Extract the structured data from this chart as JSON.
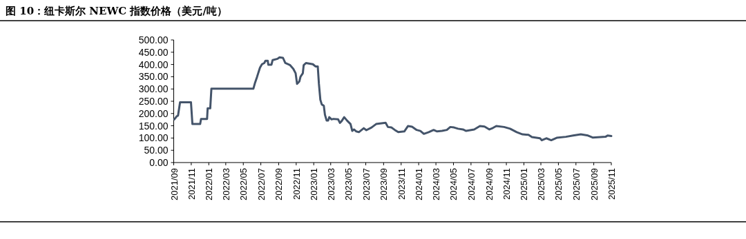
{
  "chart_data": {
    "type": "line",
    "title": "图 10：纽卡斯尔 NEWC 指数价格（美元/吨）",
    "color": "#44546a",
    "x": [
      "2021-09-03",
      "2021-09-11",
      "2021-09-16",
      "2021-09-23",
      "2021-10-31",
      "2021-11-05",
      "2021-12-02",
      "2021-12-05",
      "2021-12-26",
      "2021-12-28",
      "2022-01-06",
      "2022-01-10",
      "2022-06-05",
      "2022-06-11",
      "2022-06-18",
      "2022-06-28",
      "2022-07-05",
      "2022-07-13",
      "2022-07-17",
      "2022-07-25",
      "2022-07-27",
      "2022-08-07",
      "2022-08-11",
      "2022-08-28",
      "2022-09-04",
      "2022-09-16",
      "2022-09-24",
      "2022-10-10",
      "2022-10-22",
      "2022-10-30",
      "2022-11-04",
      "2022-11-12",
      "2022-11-16",
      "2022-11-24",
      "2022-11-27",
      "2022-12-05",
      "2022-12-29",
      "2023-01-07",
      "2023-01-15",
      "2023-01-19",
      "2023-01-24",
      "2023-01-29",
      "2023-02-05",
      "2023-02-09",
      "2023-02-15",
      "2023-02-20",
      "2023-02-24",
      "2023-03-04",
      "2023-03-10",
      "2023-03-27",
      "2023-04-02",
      "2023-04-08",
      "2023-04-17",
      "2023-04-27",
      "2023-05-09",
      "2023-05-15",
      "2023-05-21",
      "2023-05-29",
      "2023-06-07",
      "2023-06-24",
      "2023-07-03",
      "2023-07-21",
      "2023-08-06",
      "2023-09-08",
      "2023-09-16",
      "2023-09-28",
      "2023-10-10",
      "2023-10-22",
      "2023-11-12",
      "2023-11-25",
      "2023-12-09",
      "2023-12-25",
      "2024-01-07",
      "2024-01-19",
      "2024-02-05",
      "2024-02-22",
      "2024-03-05",
      "2024-03-22",
      "2024-04-08",
      "2024-04-20",
      "2024-05-03",
      "2024-05-17",
      "2024-06-03",
      "2024-06-14",
      "2024-07-12",
      "2024-08-01",
      "2024-08-17",
      "2024-09-03",
      "2024-09-15",
      "2024-09-27",
      "2024-10-24",
      "2024-11-14",
      "2024-12-07",
      "2024-12-27",
      "2025-01-17",
      "2025-01-29",
      "2025-02-26",
      "2025-03-04",
      "2025-03-20",
      "2025-04-06",
      "2025-04-25",
      "2025-05-27",
      "2025-06-21",
      "2025-07-18",
      "2025-08-12",
      "2025-08-28",
      "2025-10-12",
      "2025-10-19",
      "2025-11-01"
    ],
    "values": [
      176,
      188,
      192,
      246,
      246,
      157,
      157,
      178,
      178,
      221,
      221,
      301,
      301,
      326,
      350,
      387,
      401,
      406,
      415,
      415,
      399,
      399,
      418,
      423,
      429,
      427,
      406,
      398,
      382,
      364,
      321,
      331,
      350,
      364,
      397,
      406,
      401,
      392,
      392,
      321,
      256,
      237,
      232,
      195,
      171,
      171,
      185,
      176,
      178,
      176,
      162,
      169,
      185,
      171,
      157,
      129,
      135,
      127,
      124,
      140,
      132,
      143,
      157,
      162,
      145,
      143,
      133,
      124,
      127,
      149,
      146,
      133,
      129,
      117,
      124,
      133,
      127,
      129,
      133,
      145,
      143,
      138,
      135,
      129,
      135,
      149,
      147,
      135,
      141,
      149,
      145,
      138,
      124,
      115,
      113,
      104,
      99,
      91,
      99,
      91,
      101,
      105,
      110,
      115,
      110,
      102,
      105,
      110,
      108
    ],
    "xlim": [
      "2021-09",
      "2025-11"
    ],
    "xticks": [
      {
        "value": "2021-09",
        "label": "2021/09"
      },
      {
        "value": "2021-11",
        "label": "2021/11"
      },
      {
        "value": "2022-01",
        "label": "2022/01"
      },
      {
        "value": "2022-03",
        "label": "2022/03"
      },
      {
        "value": "2022-05",
        "label": "2022/05"
      },
      {
        "value": "2022-07",
        "label": "2022/07"
      },
      {
        "value": "2022-09",
        "label": "2022/09"
      },
      {
        "value": "2022-11",
        "label": "2022/11"
      },
      {
        "value": "2023-01",
        "label": "2023/01"
      },
      {
        "value": "2023-03",
        "label": "2023/03"
      },
      {
        "value": "2023-05",
        "label": "2023/05"
      },
      {
        "value": "2023-07",
        "label": "2023/07"
      },
      {
        "value": "2023-09",
        "label": "2023/09"
      },
      {
        "value": "2023-11",
        "label": "2023/11"
      },
      {
        "value": "2024-01",
        "label": "2024/01"
      },
      {
        "value": "2024-03",
        "label": "2024/03"
      },
      {
        "value": "2024-05",
        "label": "2024/05"
      },
      {
        "value": "2024-07",
        "label": "2024/07"
      },
      {
        "value": "2024-09",
        "label": "2024/09"
      },
      {
        "value": "2024-11",
        "label": "2024/11"
      },
      {
        "value": "2025-01",
        "label": "2025/01"
      },
      {
        "value": "2025-03",
        "label": "2025/03"
      },
      {
        "value": "2025-05",
        "label": "2025/05"
      },
      {
        "value": "2025-07",
        "label": "2025/07"
      },
      {
        "value": "2025-09",
        "label": "2025/09"
      },
      {
        "value": "2025-11",
        "label": "2025/11"
      }
    ],
    "ylim": [
      0,
      500
    ],
    "yticks": [
      {
        "value": 0,
        "label": "0.00"
      },
      {
        "value": 50,
        "label": "50.00"
      },
      {
        "value": 100,
        "label": "100.00"
      },
      {
        "value": 150,
        "label": "150.00"
      },
      {
        "value": 200,
        "label": "200.00"
      },
      {
        "value": 250,
        "label": "250.00"
      },
      {
        "value": 300,
        "label": "300.00"
      },
      {
        "value": 350,
        "label": "350.00"
      },
      {
        "value": 400,
        "label": "400.00"
      },
      {
        "value": 450,
        "label": "450.00"
      },
      {
        "value": 500,
        "label": "500.00"
      }
    ]
  }
}
